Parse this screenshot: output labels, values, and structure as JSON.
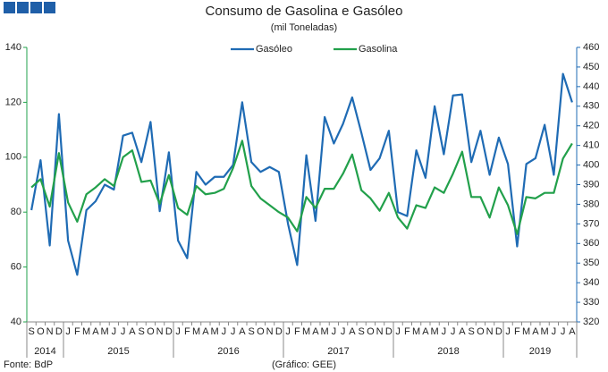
{
  "chart_data": {
    "type": "line",
    "title": "Consumo de Gasolina e Gasóleo",
    "subtitle": "(mil Toneladas)",
    "source": "Fonte: BdP",
    "credit": "(Gráfico: GEE)",
    "categories": [
      "S",
      "O",
      "N",
      "D",
      "J",
      "F",
      "M",
      "A",
      "M",
      "J",
      "J",
      "A",
      "S",
      "O",
      "N",
      "D",
      "J",
      "F",
      "M",
      "A",
      "M",
      "J",
      "J",
      "A",
      "S",
      "O",
      "N",
      "D",
      "J",
      "F",
      "M",
      "A",
      "M",
      "J",
      "J",
      "A",
      "S",
      "O",
      "N",
      "D",
      "J",
      "F",
      "M",
      "A",
      "M",
      "J",
      "J",
      "A",
      "S",
      "O",
      "N",
      "D",
      "J",
      "F",
      "M",
      "A",
      "M",
      "J",
      "J",
      "A"
    ],
    "years": [
      "2014",
      "2015",
      "2016",
      "2017",
      "2018",
      "2019"
    ],
    "ylim": [
      40,
      140
    ],
    "yticks": [
      40,
      60,
      80,
      100,
      120,
      140
    ],
    "y2lim": [
      320,
      460
    ],
    "y2ticks": [
      320,
      330,
      340,
      350,
      360,
      370,
      380,
      390,
      400,
      410,
      420,
      430,
      440,
      450,
      460
    ],
    "grid": false,
    "legend": "top",
    "series": [
      {
        "name": "Gasóleo",
        "color": "#1f6bb4",
        "axis": "y2",
        "values": [
          377,
          402.5,
          359,
          426,
          361.5,
          344,
          377,
          381.5,
          390,
          387.5,
          415,
          416.5,
          401.5,
          422,
          376.5,
          406.5,
          361.5,
          352.5,
          396.5,
          390,
          394,
          394,
          400,
          432,
          401.5,
          396.5,
          399,
          396.5,
          370,
          349,
          405,
          371.5,
          424.5,
          411,
          421,
          434.5,
          416.5,
          397.5,
          403.5,
          417.5,
          376,
          374,
          407.5,
          393.5,
          430,
          405.5,
          435.5,
          436,
          401.5,
          417.5,
          395,
          414,
          400.5,
          358.5,
          400.5,
          403.5,
          420.5,
          395,
          446.5,
          432
        ]
      },
      {
        "name": "Gasolina",
        "color": "#22a04b",
        "axis": "y",
        "values": [
          89,
          92,
          82,
          101.5,
          83.5,
          76.5,
          86.5,
          89,
          92,
          89.5,
          100,
          102.5,
          91,
          91.5,
          83,
          93.5,
          81.5,
          79,
          89.5,
          86.5,
          87,
          88.5,
          96,
          106,
          89.5,
          85,
          82.5,
          80,
          78,
          73,
          85.5,
          81.5,
          88.5,
          88.5,
          94,
          101,
          88,
          85,
          80.5,
          87,
          78,
          74,
          82.5,
          81.5,
          89,
          87,
          94,
          102,
          85.5,
          85.5,
          78,
          89,
          82.5,
          72,
          85.5,
          85,
          87,
          87,
          99.5,
          105
        ]
      }
    ]
  }
}
